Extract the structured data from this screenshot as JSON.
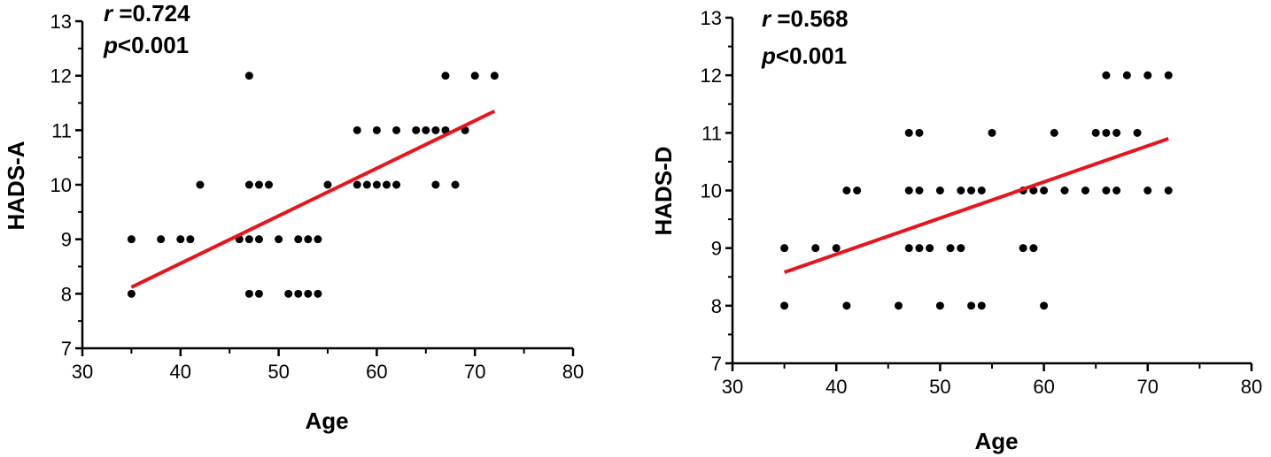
{
  "chart_data": [
    {
      "type": "scatter",
      "xlabel": "Age",
      "ylabel": "HADS-A",
      "xlim": [
        30,
        80
      ],
      "ylim": [
        7,
        13
      ],
      "xticks": [
        "30",
        "40",
        "50",
        "60",
        "70",
        "80"
      ],
      "yticks": [
        "7",
        "8",
        "9",
        "10",
        "11",
        "12",
        "13"
      ],
      "annotations": {
        "r_symbol": "r",
        "r_value": " =0.724",
        "p_symbol": "p",
        "p_value": "<0.001"
      },
      "fit_line": {
        "color": "#e8141c",
        "x": [
          35,
          72
        ],
        "y": [
          8.12,
          11.35
        ]
      },
      "point_color": "#000000",
      "points": [
        [
          35,
          9
        ],
        [
          35,
          8
        ],
        [
          38,
          9
        ],
        [
          40,
          9
        ],
        [
          41,
          9
        ],
        [
          42,
          10
        ],
        [
          46,
          9
        ],
        [
          47,
          12
        ],
        [
          47,
          10
        ],
        [
          47,
          9
        ],
        [
          47,
          8
        ],
        [
          48,
          10
        ],
        [
          48,
          9
        ],
        [
          48,
          8
        ],
        [
          49,
          10
        ],
        [
          50,
          9
        ],
        [
          51,
          8
        ],
        [
          52,
          9
        ],
        [
          52,
          8
        ],
        [
          53,
          9
        ],
        [
          53,
          8
        ],
        [
          54,
          9
        ],
        [
          54,
          8
        ],
        [
          55,
          10
        ],
        [
          58,
          11
        ],
        [
          58,
          10
        ],
        [
          59,
          10
        ],
        [
          60,
          11
        ],
        [
          60,
          10
        ],
        [
          61,
          10
        ],
        [
          62,
          11
        ],
        [
          62,
          10
        ],
        [
          64,
          11
        ],
        [
          65,
          11
        ],
        [
          66,
          11
        ],
        [
          66,
          10
        ],
        [
          67,
          12
        ],
        [
          67,
          11
        ],
        [
          68,
          10
        ],
        [
          69,
          11
        ],
        [
          70,
          12
        ],
        [
          72,
          12
        ]
      ]
    },
    {
      "type": "scatter",
      "xlabel": "Age",
      "ylabel": "HADS-D",
      "xlim": [
        30,
        80
      ],
      "ylim": [
        7,
        13
      ],
      "xticks": [
        "30",
        "40",
        "50",
        "60",
        "70",
        "80"
      ],
      "yticks": [
        "7",
        "8",
        "9",
        "10",
        "11",
        "12",
        "13"
      ],
      "annotations": {
        "r_symbol": "r",
        "r_value": " =0.568",
        "p_symbol": "p",
        "p_value": "<0.001"
      },
      "fit_line": {
        "color": "#e8141c",
        "x": [
          35,
          72
        ],
        "y": [
          8.58,
          10.9
        ]
      },
      "point_color": "#000000",
      "points": [
        [
          35,
          9
        ],
        [
          35,
          8
        ],
        [
          38,
          9
        ],
        [
          40,
          9
        ],
        [
          41,
          10
        ],
        [
          41,
          8
        ],
        [
          42,
          10
        ],
        [
          46,
          8
        ],
        [
          47,
          11
        ],
        [
          47,
          10
        ],
        [
          47,
          9
        ],
        [
          48,
          11
        ],
        [
          48,
          10
        ],
        [
          48,
          9
        ],
        [
          49,
          9
        ],
        [
          50,
          10
        ],
        [
          50,
          8
        ],
        [
          51,
          9
        ],
        [
          52,
          10
        ],
        [
          52,
          9
        ],
        [
          53,
          10
        ],
        [
          53,
          8
        ],
        [
          54,
          10
        ],
        [
          54,
          8
        ],
        [
          55,
          11
        ],
        [
          58,
          10
        ],
        [
          58,
          9
        ],
        [
          59,
          10
        ],
        [
          59,
          9
        ],
        [
          60,
          10
        ],
        [
          60,
          8
        ],
        [
          61,
          11
        ],
        [
          62,
          10
        ],
        [
          64,
          10
        ],
        [
          65,
          11
        ],
        [
          66,
          12
        ],
        [
          66,
          11
        ],
        [
          66,
          10
        ],
        [
          67,
          11
        ],
        [
          67,
          10
        ],
        [
          68,
          12
        ],
        [
          69,
          11
        ],
        [
          70,
          12
        ],
        [
          70,
          10
        ],
        [
          72,
          12
        ],
        [
          72,
          10
        ]
      ]
    }
  ]
}
